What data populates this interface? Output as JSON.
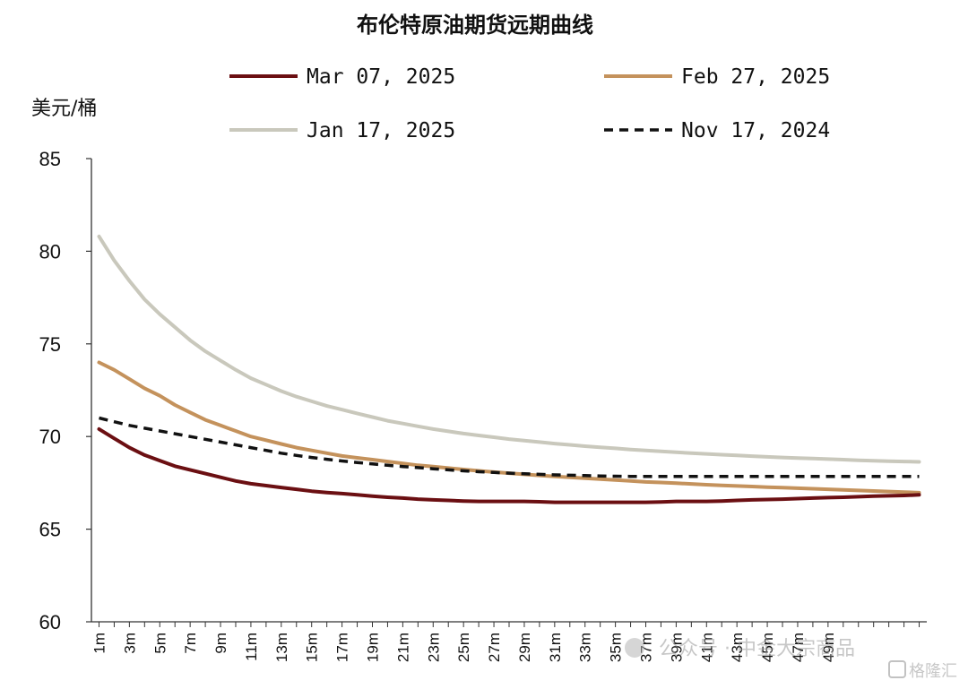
{
  "chart_data": {
    "type": "line",
    "title": "布伦特原油期货远期曲线",
    "ylabel": "美元/桶",
    "xlabel": "",
    "ylim": [
      60,
      85
    ],
    "yticks": [
      60,
      65,
      70,
      75,
      80,
      85
    ],
    "x": [
      "1m",
      "2m",
      "3m",
      "4m",
      "5m",
      "6m",
      "7m",
      "8m",
      "9m",
      "10m",
      "11m",
      "12m",
      "13m",
      "14m",
      "15m",
      "16m",
      "17m",
      "18m",
      "19m",
      "20m",
      "21m",
      "22m",
      "23m",
      "24m",
      "25m",
      "26m",
      "27m",
      "28m",
      "29m",
      "30m",
      "31m",
      "32m",
      "33m",
      "34m",
      "35m",
      "36m",
      "37m",
      "38m",
      "39m",
      "40m",
      "41m",
      "42m",
      "43m",
      "44m",
      "45m",
      "46m",
      "47m",
      "48m",
      "49m",
      "50m",
      "51m",
      "52m",
      "53m",
      "54m",
      "55m"
    ],
    "xtick_labels": [
      "1m",
      "3m",
      "5m",
      "7m",
      "9m",
      "11m",
      "13m",
      "15m",
      "17m",
      "19m",
      "21m",
      "23m",
      "25m",
      "27m",
      "29m",
      "31m",
      "33m",
      "35m",
      "37m",
      "39m",
      "41m",
      "43m",
      "45m",
      "47m",
      "49m"
    ],
    "grid": false,
    "legend_position": "top",
    "series": [
      {
        "name": "Mar 07, 2025",
        "color": "#6b0f12",
        "style": "solid",
        "values": [
          70.4,
          69.9,
          69.4,
          69.0,
          68.7,
          68.4,
          68.2,
          68.0,
          67.8,
          67.6,
          67.45,
          67.35,
          67.25,
          67.15,
          67.05,
          66.98,
          66.92,
          66.85,
          66.78,
          66.72,
          66.68,
          66.62,
          66.58,
          66.55,
          66.52,
          66.5,
          66.5,
          66.5,
          66.5,
          66.48,
          66.45,
          66.45,
          66.45,
          66.45,
          66.45,
          66.45,
          66.45,
          66.47,
          66.5,
          66.5,
          66.5,
          66.52,
          66.55,
          66.58,
          66.6,
          66.62,
          66.65,
          66.68,
          66.7,
          66.72,
          66.75,
          66.78,
          66.8,
          66.82,
          66.85
        ]
      },
      {
        "name": "Feb 27, 2025",
        "color": "#c4925c",
        "style": "solid",
        "values": [
          74.0,
          73.6,
          73.1,
          72.6,
          72.2,
          71.7,
          71.3,
          70.9,
          70.6,
          70.3,
          70.0,
          69.8,
          69.6,
          69.4,
          69.25,
          69.1,
          68.95,
          68.85,
          68.75,
          68.65,
          68.55,
          68.45,
          68.38,
          68.3,
          68.22,
          68.15,
          68.08,
          68.02,
          67.96,
          67.9,
          67.85,
          67.8,
          67.75,
          67.7,
          67.65,
          67.6,
          67.55,
          67.52,
          67.48,
          67.44,
          67.4,
          67.36,
          67.33,
          67.3,
          67.27,
          67.24,
          67.21,
          67.18,
          67.15,
          67.12,
          67.09,
          67.06,
          67.03,
          67.0,
          66.97
        ]
      },
      {
        "name": "Jan 17, 2025",
        "color": "#c9c8bc",
        "style": "solid",
        "values": [
          80.8,
          79.5,
          78.4,
          77.4,
          76.6,
          75.9,
          75.2,
          74.6,
          74.1,
          73.6,
          73.15,
          72.8,
          72.45,
          72.15,
          71.9,
          71.65,
          71.45,
          71.25,
          71.05,
          70.85,
          70.7,
          70.55,
          70.4,
          70.28,
          70.16,
          70.06,
          69.96,
          69.86,
          69.78,
          69.7,
          69.62,
          69.55,
          69.48,
          69.42,
          69.36,
          69.3,
          69.25,
          69.2,
          69.15,
          69.1,
          69.06,
          69.02,
          68.98,
          68.94,
          68.9,
          68.87,
          68.84,
          68.81,
          68.78,
          68.75,
          68.72,
          68.69,
          68.67,
          68.65,
          68.63
        ]
      },
      {
        "name": "Nov 17, 2024",
        "color": "#111111",
        "style": "dashed",
        "values": [
          71.0,
          70.8,
          70.6,
          70.45,
          70.3,
          70.15,
          70.0,
          69.85,
          69.7,
          69.55,
          69.4,
          69.25,
          69.1,
          68.98,
          68.87,
          68.77,
          68.68,
          68.6,
          68.52,
          68.45,
          68.38,
          68.32,
          68.26,
          68.2,
          68.15,
          68.1,
          68.06,
          68.02,
          67.99,
          67.96,
          67.93,
          67.91,
          67.89,
          67.87,
          67.86,
          67.85,
          67.85,
          67.85,
          67.85,
          67.85,
          67.85,
          67.85,
          67.85,
          67.85,
          67.85,
          67.85,
          67.85,
          67.85,
          67.85,
          67.85,
          67.85,
          67.85,
          67.85,
          67.85,
          67.85
        ]
      }
    ]
  },
  "watermark": {
    "wechat_text": "公众号 · 中金大宗商品",
    "brand_text": "格隆汇"
  }
}
